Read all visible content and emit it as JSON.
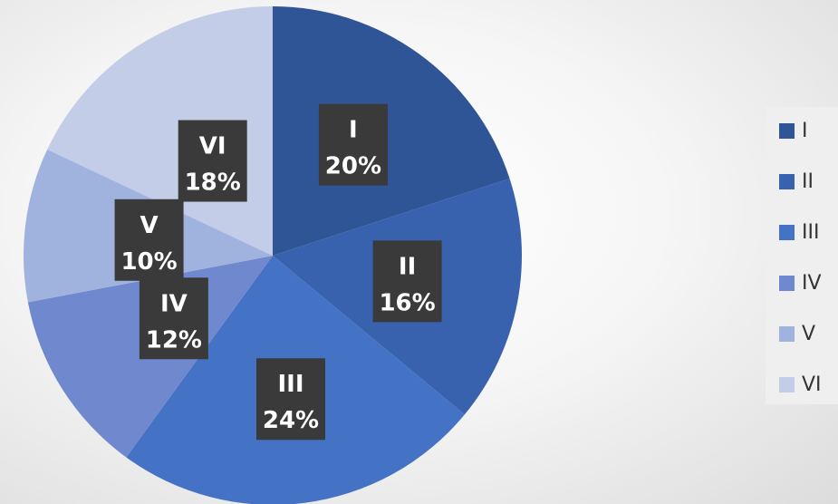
{
  "chart_data": {
    "type": "pie",
    "title": "",
    "categories": [
      "I",
      "II",
      "III",
      "IV",
      "V",
      "VI"
    ],
    "values": [
      20,
      16,
      24,
      12,
      10,
      18
    ],
    "value_labels": [
      "20%",
      "16%",
      "24%",
      "12%",
      "10%",
      "18%"
    ],
    "colors": [
      "#2f5597",
      "#3862ad",
      "#4472c4",
      "#7088cd",
      "#a0b2de",
      "#c3cde8"
    ],
    "start_angle_deg": 0,
    "direction": "clockwise",
    "legend": {
      "position": "right"
    },
    "data_label_style": {
      "box_color": "#3a3a3a",
      "text_color": "#ffffff"
    }
  }
}
